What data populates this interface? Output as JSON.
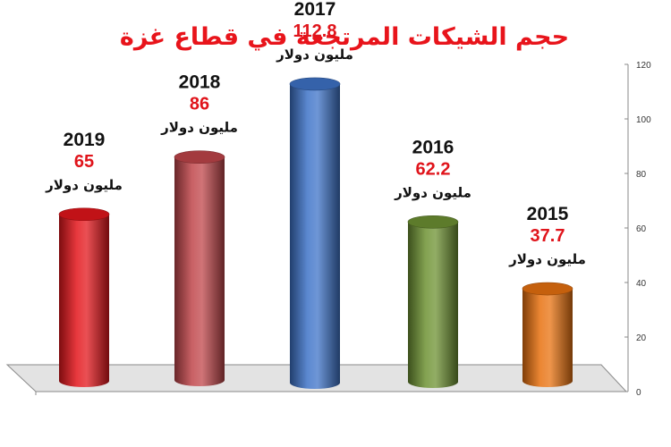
{
  "chart_data": {
    "type": "bar",
    "title": "حجم الشيكات المرتجعة في قطاع غزة",
    "categories": [
      "2019",
      "2018",
      "2017",
      "2016",
      "2015"
    ],
    "values": [
      65,
      86,
      112.8,
      62.2,
      37.7
    ],
    "value_labels": [
      "65",
      "86",
      "112.8",
      "62.2",
      "37.7"
    ],
    "unit_label": "مليون دولار",
    "bar_colors": [
      "#e3151b",
      "#c0454a",
      "#3e73c8",
      "#6d9132",
      "#e8710f"
    ],
    "title_color": "#e8141b",
    "value_color": "#e0141b",
    "ylim": [
      0,
      120
    ],
    "yticks": [
      0,
      20,
      40,
      60,
      80,
      100,
      120
    ],
    "y_axis_position": "right",
    "grid": false,
    "style": "3d-cylinders"
  }
}
